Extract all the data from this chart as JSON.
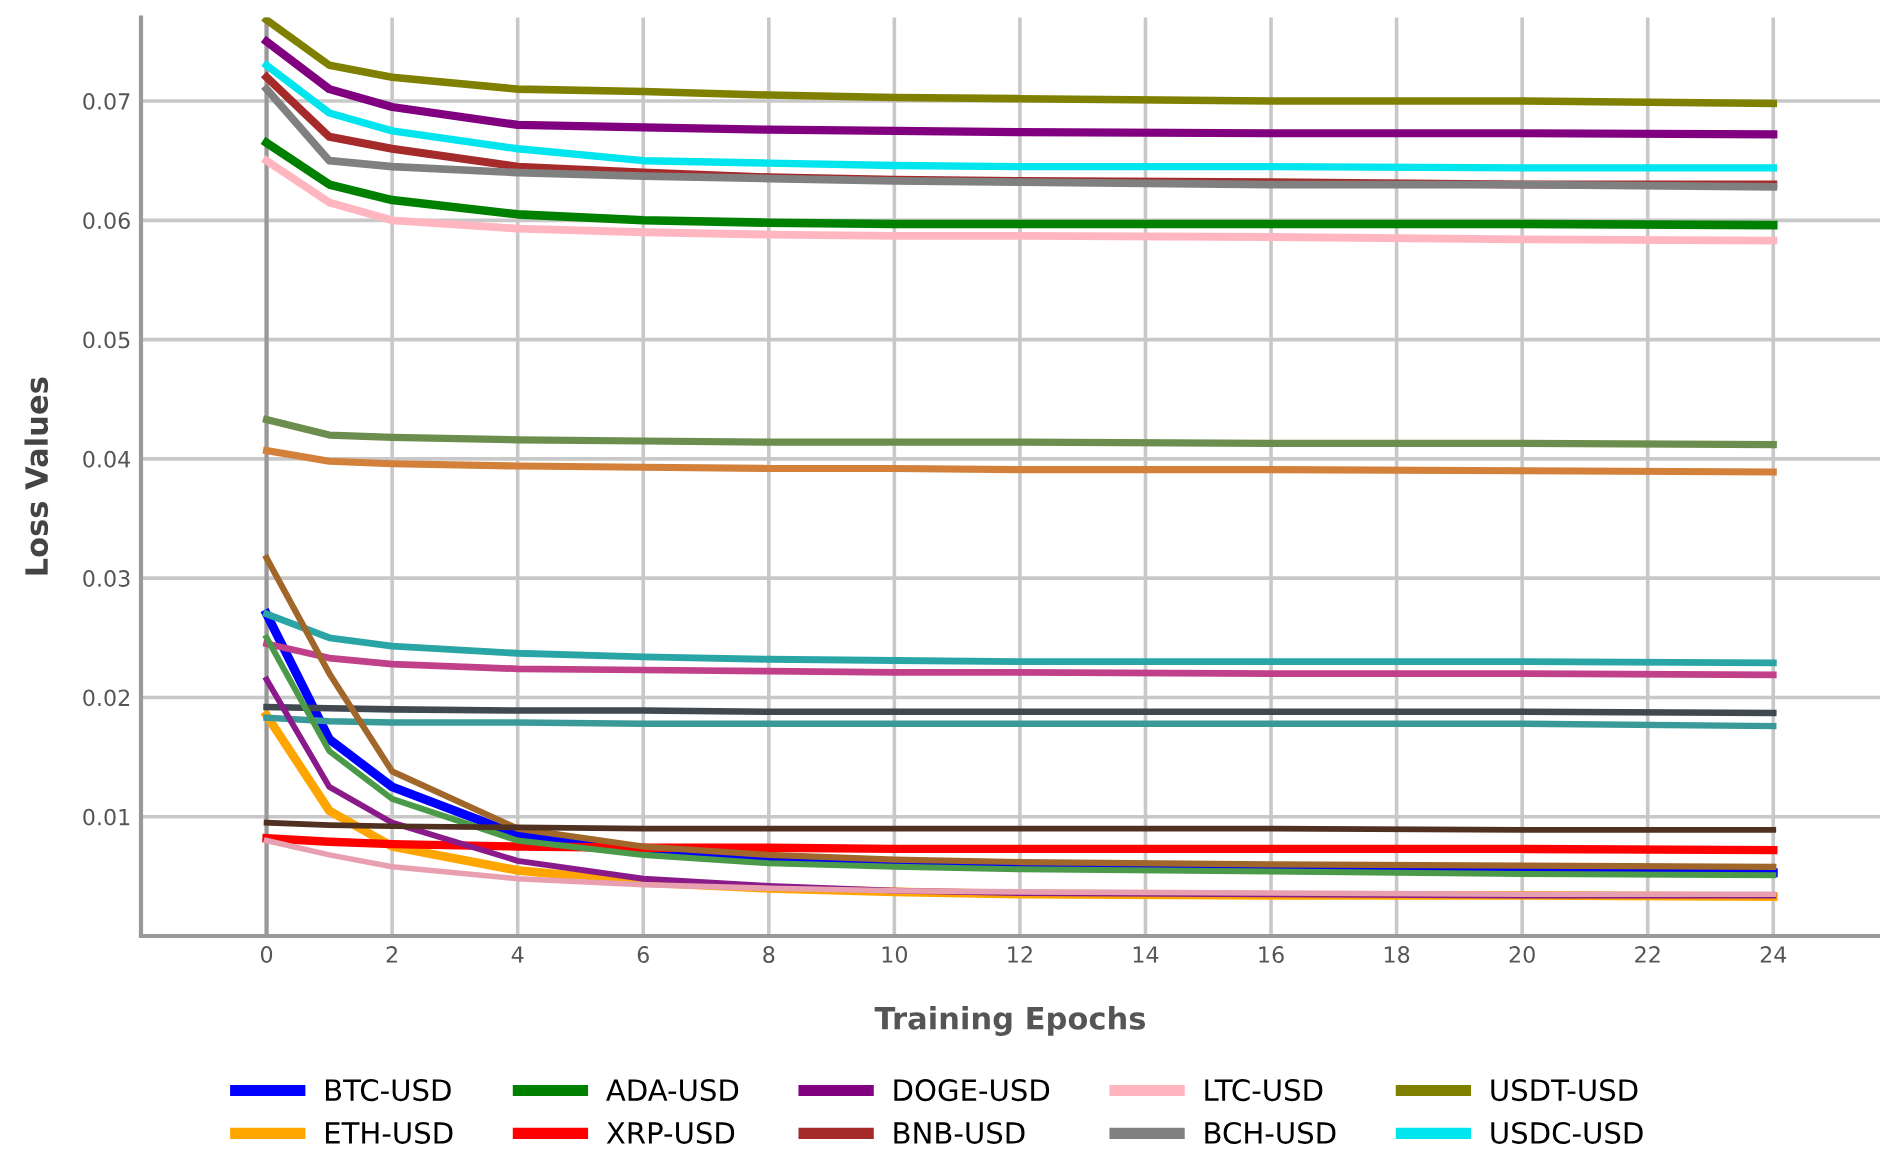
{
  "chart_data": {
    "type": "line",
    "xlabel": "Training Epochs",
    "ylabel": "Loss Values",
    "x": [
      0,
      1,
      2,
      4,
      6,
      8,
      10,
      12,
      16,
      20,
      24
    ],
    "xlim": [
      -2,
      25.7
    ],
    "xticks": [
      0,
      2,
      4,
      6,
      8,
      10,
      12,
      14,
      16,
      18,
      20,
      22,
      24
    ],
    "ylim": [
      0,
      0.077
    ],
    "yticks": [
      0.01,
      0.02,
      0.03,
      0.04,
      0.05,
      0.06,
      0.07
    ],
    "grid": true,
    "legend": "bottom",
    "marker": "none",
    "line_style": "solid",
    "series": [
      {
        "name": "BTC-USD",
        "color": "#0000ff",
        "values": [
          0.027,
          0.0165,
          0.0125,
          0.0085,
          0.007,
          0.0063,
          0.006,
          0.0058,
          0.0056,
          0.0054,
          0.0053
        ]
      },
      {
        "name": "ETH-USD",
        "color": "#ffa500",
        "values": [
          0.0185,
          0.0105,
          0.0075,
          0.0055,
          0.0045,
          0.004,
          0.0037,
          0.0035,
          0.0034,
          0.0034,
          0.0033
        ]
      },
      {
        "name": "ADA-USD",
        "color": "#008000",
        "values": [
          0.0665,
          0.063,
          0.0617,
          0.0605,
          0.06,
          0.0598,
          0.0597,
          0.0597,
          0.0597,
          0.0597,
          0.0596
        ]
      },
      {
        "name": "XRP-USD",
        "color": "#ff0000",
        "values": [
          0.0082,
          0.0079,
          0.0077,
          0.0075,
          0.0074,
          0.0074,
          0.0073,
          0.0073,
          0.0073,
          0.0073,
          0.0072
        ]
      },
      {
        "name": "DOGE-USD",
        "color": "#800080",
        "values": [
          0.075,
          0.071,
          0.0695,
          0.068,
          0.0678,
          0.0676,
          0.0675,
          0.0674,
          0.0673,
          0.0673,
          0.0672
        ]
      },
      {
        "name": "BNB-USD",
        "color": "#a52a2a",
        "values": [
          0.072,
          0.067,
          0.066,
          0.0645,
          0.064,
          0.0636,
          0.0634,
          0.0633,
          0.0632,
          0.063,
          0.063
        ]
      },
      {
        "name": "LTC-USD",
        "color": "#ffb6c1",
        "values": [
          0.065,
          0.0615,
          0.06,
          0.0593,
          0.059,
          0.0588,
          0.0587,
          0.0587,
          0.0586,
          0.0584,
          0.0583
        ]
      },
      {
        "name": "BCH-USD",
        "color": "#808080",
        "values": [
          0.071,
          0.065,
          0.0645,
          0.064,
          0.0637,
          0.0635,
          0.0633,
          0.0632,
          0.063,
          0.063,
          0.0628
        ]
      },
      {
        "name": "USDT-USD",
        "color": "#808000",
        "values": [
          0.0768,
          0.073,
          0.072,
          0.071,
          0.0708,
          0.0705,
          0.0703,
          0.0702,
          0.07,
          0.07,
          0.0698
        ]
      },
      {
        "name": "USDC-USD",
        "color": "#00e5ee",
        "values": [
          0.073,
          0.069,
          0.0675,
          0.066,
          0.065,
          0.0648,
          0.0646,
          0.0645,
          0.0645,
          0.0644,
          0.0644
        ]
      },
      {
        "color": "#6b8e4e",
        "values": [
          0.0433,
          0.042,
          0.0418,
          0.0416,
          0.0415,
          0.0414,
          0.0414,
          0.0414,
          0.0413,
          0.0413,
          0.0412
        ]
      },
      {
        "color": "#d2803a",
        "values": [
          0.0407,
          0.0398,
          0.0396,
          0.0394,
          0.0393,
          0.0392,
          0.0392,
          0.0391,
          0.0391,
          0.039,
          0.0389
        ]
      },
      {
        "color": "#2aa5a5",
        "values": [
          0.027,
          0.025,
          0.0243,
          0.0237,
          0.0234,
          0.0232,
          0.0231,
          0.023,
          0.023,
          0.023,
          0.0229
        ]
      },
      {
        "color": "#c0408a",
        "values": [
          0.0245,
          0.0233,
          0.0228,
          0.0224,
          0.0223,
          0.0222,
          0.0221,
          0.0221,
          0.022,
          0.022,
          0.0219
        ]
      },
      {
        "color": "#404850",
        "values": [
          0.0192,
          0.0191,
          0.019,
          0.0189,
          0.0189,
          0.0188,
          0.0188,
          0.0188,
          0.0188,
          0.0188,
          0.0187
        ]
      },
      {
        "color": "#3a9a9a",
        "values": [
          0.0183,
          0.018,
          0.0179,
          0.0179,
          0.0178,
          0.0178,
          0.0178,
          0.0178,
          0.0178,
          0.0178,
          0.0176
        ]
      },
      {
        "color": "#a0662a",
        "values": [
          0.0317,
          0.022,
          0.0138,
          0.009,
          0.0075,
          0.0068,
          0.0064,
          0.0062,
          0.006,
          0.0059,
          0.0058
        ]
      },
      {
        "color": "#4a9a4a",
        "values": [
          0.025,
          0.0155,
          0.0115,
          0.008,
          0.0068,
          0.0061,
          0.0058,
          0.0056,
          0.0054,
          0.0052,
          0.0051
        ]
      },
      {
        "color": "#8a1a8a",
        "values": [
          0.0215,
          0.0125,
          0.0095,
          0.0063,
          0.0048,
          0.0042,
          0.0038,
          0.0036,
          0.0035,
          0.0034,
          0.0034
        ]
      },
      {
        "color": "#503020",
        "values": [
          0.0095,
          0.0093,
          0.0092,
          0.0091,
          0.009,
          0.009,
          0.009,
          0.009,
          0.009,
          0.0089,
          0.0089
        ]
      },
      {
        "color": "#e8a0b0",
        "values": [
          0.008,
          0.0068,
          0.0058,
          0.0048,
          0.0043,
          0.004,
          0.0038,
          0.0037,
          0.0036,
          0.0035,
          0.0035
        ]
      }
    ]
  }
}
